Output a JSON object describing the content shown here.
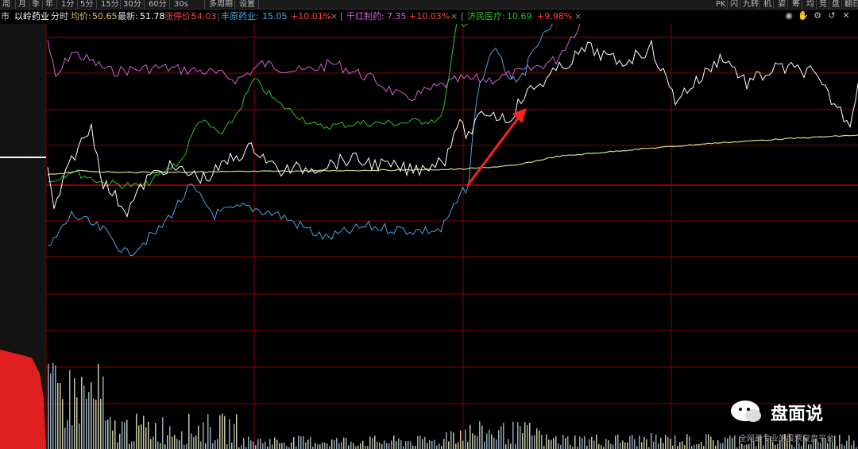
{
  "toolbar": {
    "items": [
      "周",
      "月",
      "季",
      "年",
      "1分",
      "5分",
      "15分",
      "30分",
      "60分",
      "30s",
      "多周期",
      "设置"
    ],
    "right_items": [
      "PK",
      "闪",
      "九转",
      "机",
      "姿",
      "筹",
      "均",
      "竞",
      "盘",
      "翻日"
    ]
  },
  "info": {
    "market": "市",
    "stock_name": "以岭药业",
    "mode": "分时",
    "avg_label": "均价:",
    "avg_value": "50.65",
    "latest_label": "最新:",
    "latest_value": "51.78",
    "limit_label": "涨停价:",
    "limit_value": "54.03",
    "peer1_name": "丰原药业:",
    "peer1_price": "15.05",
    "peer1_change": "+10.01%",
    "peer2_name": "千红制药:",
    "peer2_price": "7.35",
    "peer2_change": "+10.03%",
    "peer3_name": "济民医疗:",
    "peer3_price": "10.69",
    "peer3_change": "+9.98%"
  },
  "icons": [
    "eye-icon",
    "hand-icon",
    "settings-icon",
    "back-icon",
    "close-icon"
  ],
  "colors": {
    "background": "#000000",
    "grid": "#8b0000",
    "main_price": "#ffffff",
    "avg_line": "#d8d88a",
    "peer1": "#4aa3df",
    "peer2": "#d060d0",
    "peer3": "#2dbf2d",
    "arrow": "#ff2020",
    "volume": "#c8c8a0"
  },
  "watermark": {
    "title": "盘面说",
    "subtitle": "全网最专业的股票复盘平台"
  }
}
